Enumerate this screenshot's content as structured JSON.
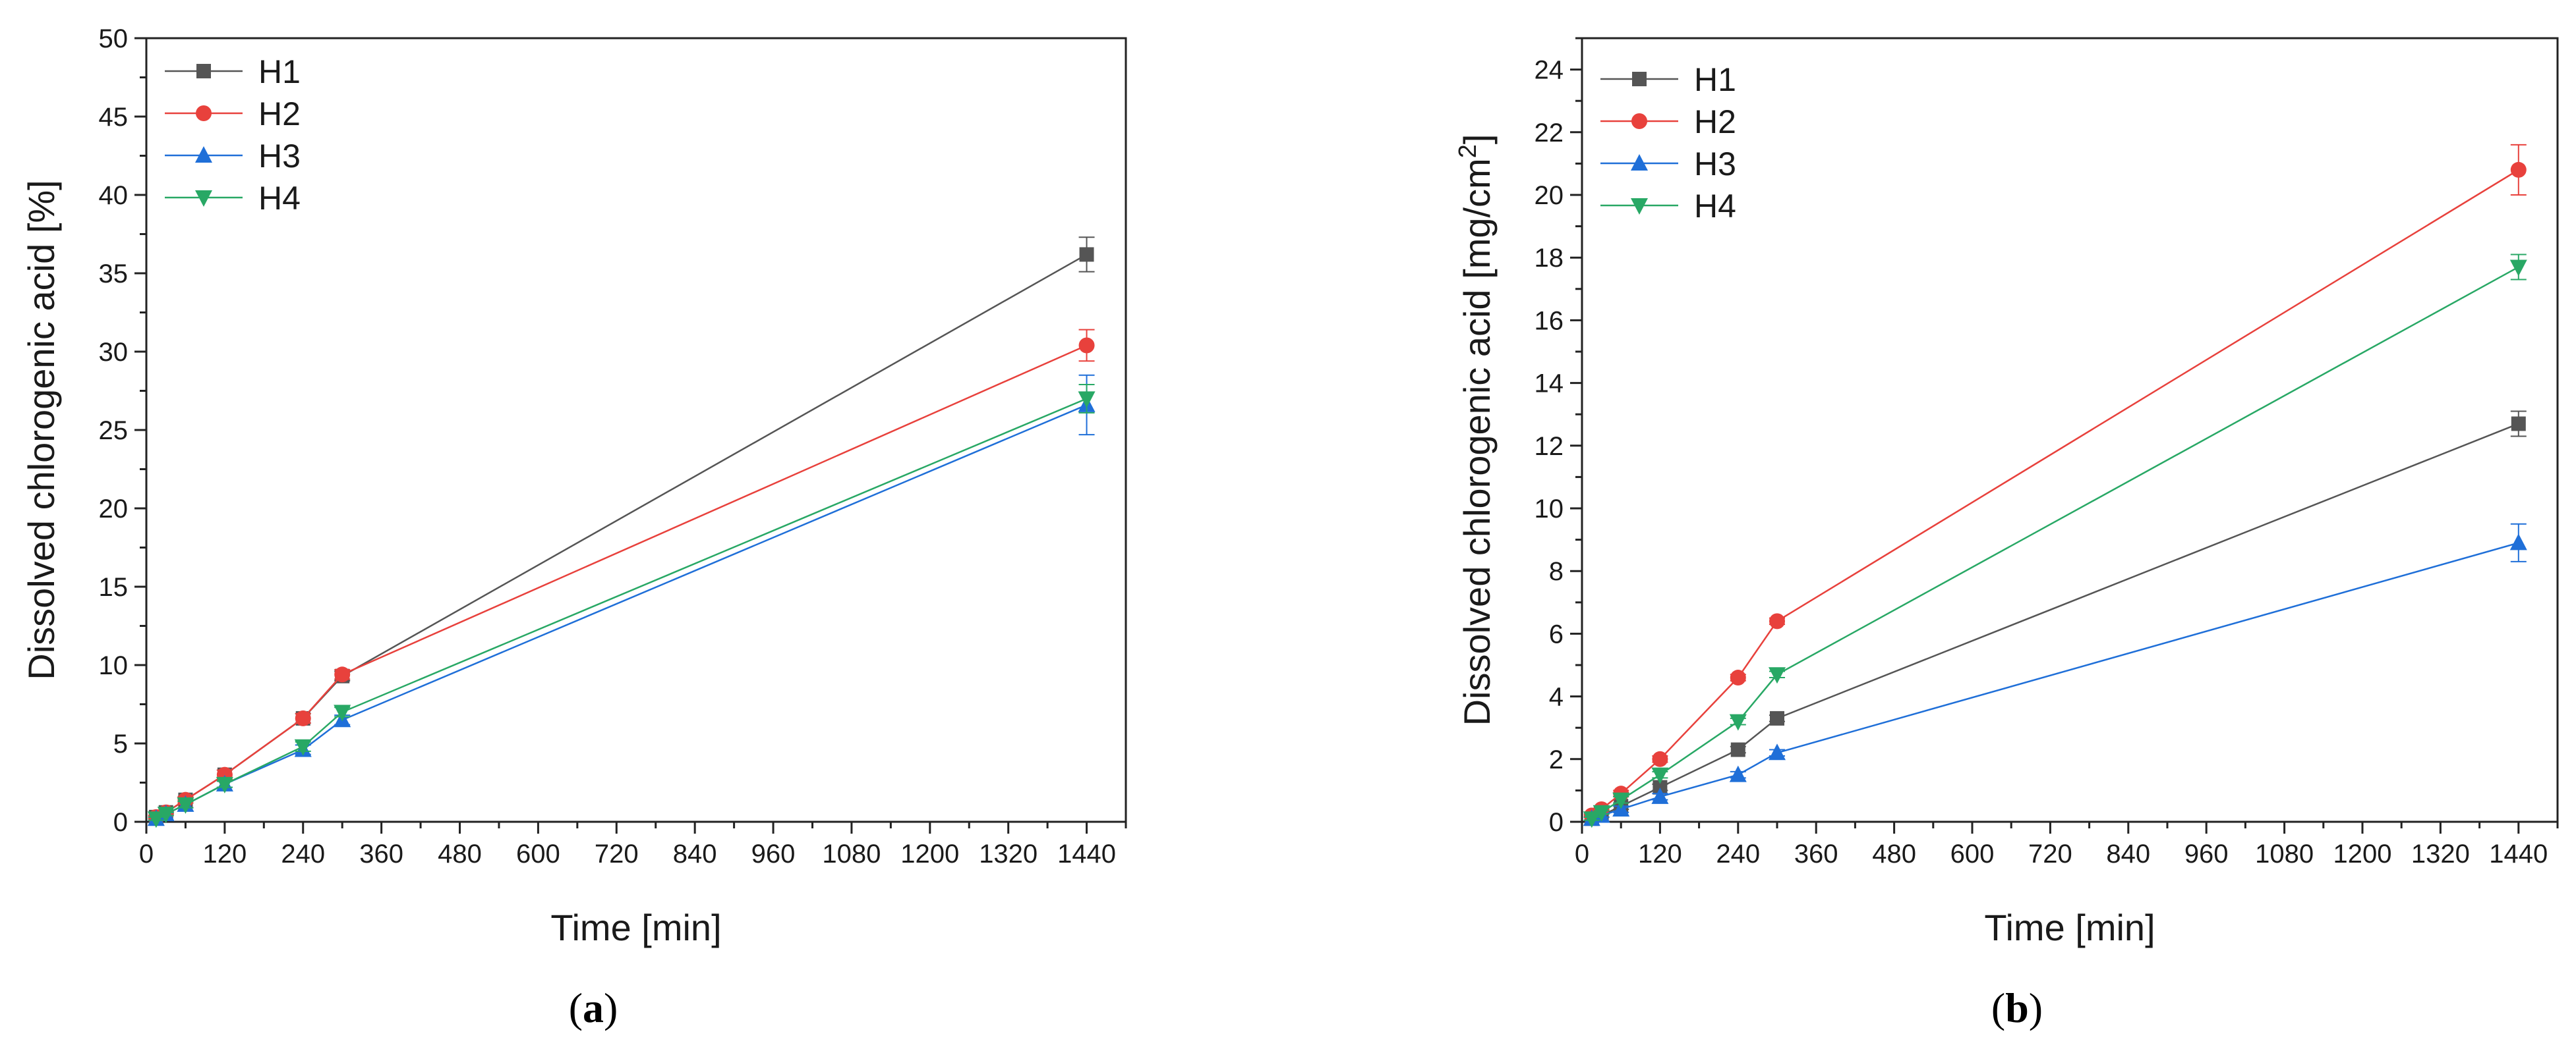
{
  "series_styles": [
    {
      "name": "H1",
      "color": "#555555",
      "marker": "square"
    },
    {
      "name": "H2",
      "color": "#e8413c",
      "marker": "circle"
    },
    {
      "name": "H3",
      "color": "#1f6fd8",
      "marker": "triangle-up"
    },
    {
      "name": "H4",
      "color": "#28a865",
      "marker": "triangle-down"
    }
  ],
  "chart_data": [
    {
      "type": "line",
      "panel_label": "a",
      "xlabel": "Time [min]",
      "ylabel": "Dissolved chlorogenic acid [%]",
      "xlim": [
        0,
        1500
      ],
      "ylim": [
        0,
        50
      ],
      "xticks": [
        0,
        120,
        240,
        360,
        480,
        600,
        720,
        840,
        960,
        1080,
        1200,
        1320,
        1440
      ],
      "yticks": [
        0,
        5,
        10,
        15,
        20,
        25,
        30,
        35,
        40,
        45,
        50
      ],
      "x": [
        15,
        30,
        60,
        120,
        240,
        300,
        1440
      ],
      "series": [
        {
          "name": "H1",
          "values": [
            0.3,
            0.6,
            1.4,
            3.0,
            6.6,
            9.3,
            36.2
          ],
          "errors": [
            0.1,
            0.1,
            0.2,
            0.3,
            0.3,
            0.3,
            1.1
          ]
        },
        {
          "name": "H2",
          "values": [
            0.3,
            0.6,
            1.4,
            3.0,
            6.6,
            9.4,
            30.4
          ],
          "errors": [
            0.1,
            0.1,
            0.2,
            0.3,
            0.3,
            0.3,
            1.0
          ]
        },
        {
          "name": "H3",
          "values": [
            0.2,
            0.5,
            1.1,
            2.4,
            4.6,
            6.5,
            26.6
          ],
          "errors": [
            0.1,
            0.1,
            0.2,
            0.2,
            0.3,
            0.3,
            1.9
          ]
        },
        {
          "name": "H4",
          "values": [
            0.2,
            0.5,
            1.1,
            2.4,
            4.8,
            7.0,
            27.0
          ],
          "errors": [
            0.1,
            0.1,
            0.2,
            0.2,
            0.3,
            0.3,
            0.9
          ]
        }
      ],
      "legend": "top-left"
    },
    {
      "type": "line",
      "panel_label": "b",
      "xlabel": "Time [min]",
      "ylabel": "Dissolved chlorogenic acid [mg/cm",
      "ylabel_sup": "2",
      "ylabel_end": "]",
      "xlim": [
        0,
        1500
      ],
      "ylim": [
        0,
        25
      ],
      "xticks": [
        0,
        120,
        240,
        360,
        480,
        600,
        720,
        840,
        960,
        1080,
        1200,
        1320,
        1440
      ],
      "yticks": [
        0,
        2,
        4,
        6,
        8,
        10,
        12,
        14,
        16,
        18,
        20,
        22,
        24
      ],
      "x": [
        15,
        30,
        60,
        120,
        240,
        300,
        1440
      ],
      "series": [
        {
          "name": "H1",
          "values": [
            0.1,
            0.2,
            0.5,
            1.1,
            2.3,
            3.3,
            12.7
          ],
          "errors": [
            0.05,
            0.05,
            0.1,
            0.1,
            0.1,
            0.1,
            0.4
          ]
        },
        {
          "name": "H2",
          "values": [
            0.2,
            0.4,
            0.9,
            2.0,
            4.6,
            6.4,
            20.8
          ],
          "errors": [
            0.05,
            0.05,
            0.1,
            0.1,
            0.1,
            0.1,
            0.8
          ]
        },
        {
          "name": "H3",
          "values": [
            0.1,
            0.2,
            0.4,
            0.8,
            1.5,
            2.2,
            8.9
          ],
          "errors": [
            0.05,
            0.05,
            0.1,
            0.1,
            0.1,
            0.1,
            0.6
          ]
        },
        {
          "name": "H4",
          "values": [
            0.1,
            0.3,
            0.7,
            1.5,
            3.2,
            4.7,
            17.7
          ],
          "errors": [
            0.05,
            0.05,
            0.1,
            0.1,
            0.1,
            0.1,
            0.4
          ]
        }
      ],
      "legend": "top-left"
    }
  ]
}
